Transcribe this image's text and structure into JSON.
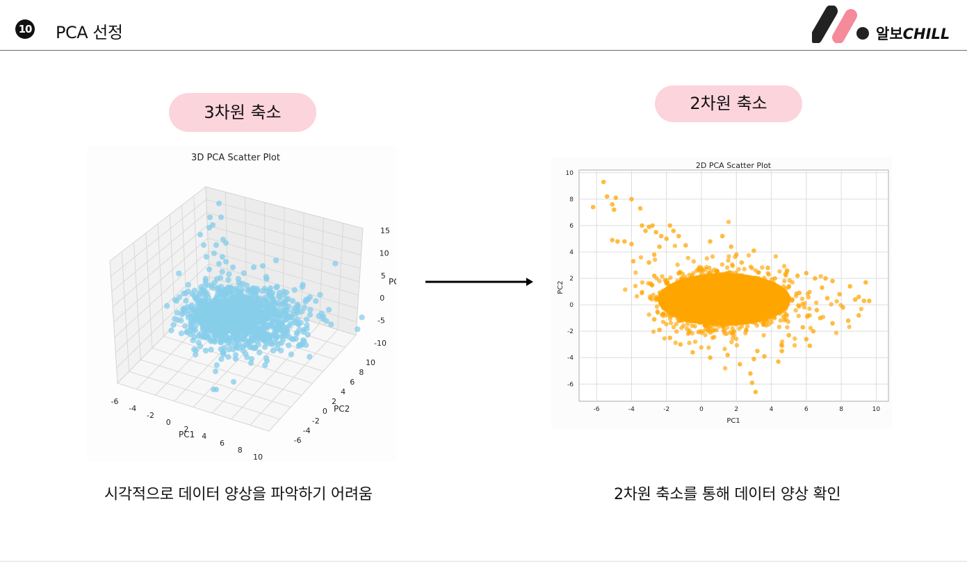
{
  "header": {
    "slide_number": "10",
    "title": "PCA 선정",
    "logo_text_ko": "알보",
    "logo_text_en": "CHILL"
  },
  "left": {
    "pill": "3차원 축소",
    "caption": "시각적으로 데이터 양상을 파악하기 어려움"
  },
  "right": {
    "pill": "2차원 축소",
    "caption": "2차원 축소를 통해 데이터 양상 확인"
  },
  "colors": {
    "accent_pink": "#fcd4dc",
    "plot3d_points": "#87ceeb",
    "plot2d_points": "#ffa500",
    "logo_dark": "#222222",
    "logo_pink": "#f48a9a"
  },
  "chart_data": [
    {
      "type": "scatter",
      "title": "3D PCA Scatter Plot",
      "xlabel": "PC1",
      "ylabel": "PC2",
      "zlabel": "PC",
      "x_ticks": [
        "-6",
        "-4",
        "-2",
        "0",
        "2",
        "4",
        "6",
        "8",
        "10"
      ],
      "y_ticks": [
        "-6",
        "-4",
        "-2",
        "0",
        "2",
        "4",
        "6",
        "8",
        "10"
      ],
      "z_ticks": [
        "-10",
        "-5",
        "0",
        "5",
        "10",
        "15"
      ],
      "xlim": [
        -6,
        10
      ],
      "ylim": [
        -6,
        10
      ],
      "zlim": [
        -10,
        15
      ],
      "grid": true,
      "projection": "3d"
    },
    {
      "type": "scatter",
      "title": "2D PCA Scatter Plot",
      "xlabel": "PC1",
      "ylabel": "PC2",
      "x_ticks": [
        "-6",
        "-4",
        "-2",
        "0",
        "2",
        "4",
        "6",
        "8",
        "10"
      ],
      "y_ticks": [
        "-6",
        "-4",
        "-2",
        "0",
        "2",
        "4",
        "6",
        "8",
        "10"
      ],
      "xlim": [
        -7,
        10.7
      ],
      "ylim": [
        -7.3,
        10.2
      ],
      "grid": true,
      "points": [
        [
          -6.2,
          7.4
        ],
        [
          -5.6,
          9.3
        ],
        [
          -5.4,
          8.2
        ],
        [
          -5.1,
          7.6
        ],
        [
          -5.0,
          7.2
        ],
        [
          -4.9,
          8.1
        ],
        [
          -4.0,
          8.0
        ],
        [
          -3.5,
          7.3
        ],
        [
          -5.1,
          4.9
        ],
        [
          -4.8,
          4.8
        ],
        [
          -4.4,
          4.8
        ],
        [
          -4.0,
          4.6
        ],
        [
          -3.9,
          3.3
        ],
        [
          -3.4,
          6.0
        ],
        [
          -3.2,
          5.6
        ],
        [
          -3.0,
          5.9
        ],
        [
          -2.8,
          6.0
        ],
        [
          -2.6,
          5.5
        ],
        [
          -2.3,
          5.2
        ],
        [
          -2.0,
          5.0
        ],
        [
          -1.8,
          6.0
        ],
        [
          -1.6,
          5.6
        ],
        [
          -1.3,
          5.2
        ],
        [
          -0.9,
          4.5
        ],
        [
          -3.0,
          3.2
        ],
        [
          -2.7,
          3.8
        ],
        [
          -2.4,
          4.4
        ],
        [
          -2.7,
          2.2
        ],
        [
          -2.9,
          1.6
        ],
        [
          -2.6,
          0.5
        ],
        [
          0.5,
          4.8
        ],
        [
          1.2,
          5.2
        ],
        [
          1.7,
          4.4
        ],
        [
          2.0,
          3.8
        ],
        [
          2.3,
          3.2
        ],
        [
          3.0,
          4.1
        ],
        [
          3.8,
          2.8
        ],
        [
          4.2,
          2.0
        ],
        [
          4.9,
          2.6
        ],
        [
          5.5,
          2.2
        ],
        [
          6.0,
          2.4
        ],
        [
          6.5,
          2.0
        ],
        [
          7.1,
          2.0
        ],
        [
          7.5,
          1.8
        ],
        [
          7.9,
          0.8
        ],
        [
          8.1,
          -0.2
        ],
        [
          8.5,
          1.4
        ],
        [
          8.8,
          0.4
        ],
        [
          9.0,
          0.6
        ],
        [
          9.3,
          0.3
        ],
        [
          9.6,
          0.3
        ],
        [
          9.4,
          1.7
        ],
        [
          9.0,
          -0.8
        ],
        [
          8.4,
          -1.2
        ],
        [
          7.5,
          -1.4
        ],
        [
          6.8,
          -1.0
        ],
        [
          6.4,
          -2.0
        ],
        [
          6.0,
          -2.6
        ],
        [
          6.2,
          -3.1
        ],
        [
          5.8,
          -1.7
        ],
        [
          5.0,
          -2.3
        ],
        [
          4.6,
          -3.5
        ],
        [
          4.4,
          -4.3
        ],
        [
          3.6,
          -3.9
        ],
        [
          3.2,
          -3.5
        ],
        [
          3.0,
          -4.1
        ],
        [
          2.8,
          -5.2
        ],
        [
          2.9,
          -5.9
        ],
        [
          3.1,
          -6.6
        ],
        [
          2.2,
          -4.5
        ],
        [
          1.5,
          -3.8
        ],
        [
          0.5,
          -4.0
        ],
        [
          -0.5,
          -3.6
        ],
        [
          -1.2,
          -3.0
        ],
        [
          -1.8,
          -2.5
        ],
        [
          -2.4,
          -1.9
        ],
        [
          -2.7,
          -1.1
        ],
        [
          5.2,
          0.4
        ],
        [
          4.7,
          -0.9
        ],
        [
          5.6,
          0.9
        ],
        [
          6.6,
          -0.4
        ],
        [
          7.2,
          0.5
        ],
        [
          6.9,
          1.3
        ],
        [
          4.5,
          1.1
        ]
      ]
    }
  ]
}
